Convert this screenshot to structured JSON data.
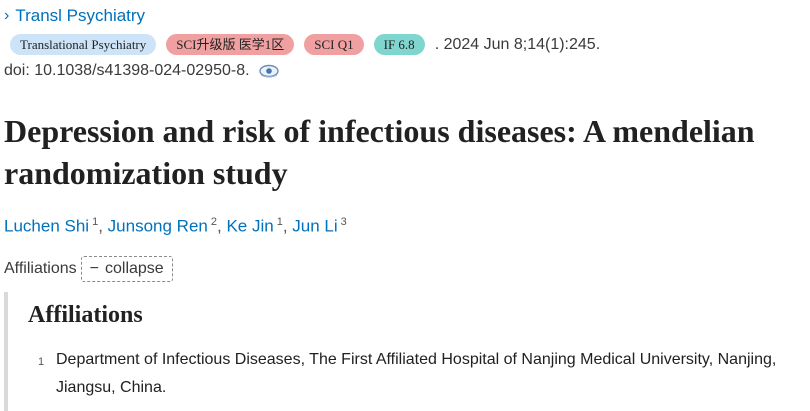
{
  "journal": {
    "link_text": "Transl Psychiatry",
    "icon": "chevron-right-icon"
  },
  "badges": [
    {
      "label": "Translational Psychiatry",
      "color": "#cde3f7"
    },
    {
      "label": "SCI升级版 医学1区",
      "color": "#f0a0a0"
    },
    {
      "label": "SCI Q1",
      "color": "#f0a0a0"
    },
    {
      "label": "IF 6.8",
      "color": "#7fd6cf"
    }
  ],
  "citation": ". 2024 Jun 8;14(1):245.",
  "doi": {
    "text": "doi: 10.1038/s41398-024-02950-8.",
    "icon": "link-eye-icon"
  },
  "title": "Depression and risk of infectious diseases: A mendelian randomization study",
  "authors": [
    {
      "name": "Luchen Shi",
      "aff": "1"
    },
    {
      "name": "Junsong Ren",
      "aff": "2"
    },
    {
      "name": "Ke Jin",
      "aff": "1"
    },
    {
      "name": "Jun Li",
      "aff": "3"
    }
  ],
  "author_separator": ",",
  "affiliations_toggle": {
    "label": "Affiliations",
    "button_symbol": "−",
    "button_label": "collapse"
  },
  "affiliations": {
    "heading": "Affiliations",
    "items": [
      {
        "num": "1",
        "text": "Department of Infectious Diseases, The First Affiliated Hospital of Nanjing Medical University, Nanjing, Jiangsu, China."
      }
    ]
  }
}
